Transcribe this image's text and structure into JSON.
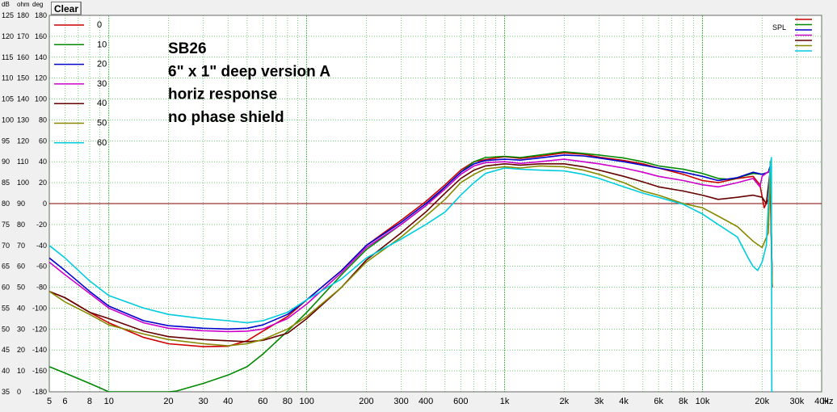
{
  "toolbar": {
    "clear_label": "Clear"
  },
  "chart_data": {
    "type": "line",
    "x_scale": "log",
    "xlim": [
      5,
      40000
    ],
    "ylim": [
      35,
      125
    ],
    "unit_headers": [
      "dB",
      "ohm",
      "deg"
    ],
    "y_ticks_db": [
      125,
      120,
      115,
      110,
      105,
      100,
      95,
      90,
      85,
      80,
      75,
      70,
      65,
      60,
      55,
      50,
      45,
      40,
      35
    ],
    "y_ticks_ohm": [
      180,
      170,
      160,
      150,
      140,
      130,
      120,
      110,
      100,
      90,
      80,
      70,
      60,
      50,
      40,
      30,
      20,
      10,
      0
    ],
    "y_ticks_deg": [
      180,
      160,
      140,
      120,
      100,
      80,
      60,
      40,
      20,
      0,
      -20,
      -40,
      -60,
      -80,
      -100,
      -120,
      -140,
      -160,
      -180
    ],
    "x_ticks": [
      {
        "v": 5,
        "label": "5"
      },
      {
        "v": 6,
        "label": "6"
      },
      {
        "v": 8,
        "label": "8"
      },
      {
        "v": 10,
        "label": "10"
      },
      {
        "v": 20,
        "label": "20"
      },
      {
        "v": 30,
        "label": "30"
      },
      {
        "v": 40,
        "label": "40"
      },
      {
        "v": 60,
        "label": "60"
      },
      {
        "v": 80,
        "label": "80"
      },
      {
        "v": 100,
        "label": "100"
      },
      {
        "v": 200,
        "label": "200"
      },
      {
        "v": 300,
        "label": "300"
      },
      {
        "v": 400,
        "label": "400"
      },
      {
        "v": 600,
        "label": "600"
      },
      {
        "v": 1000,
        "label": "1k"
      },
      {
        "v": 2000,
        "label": "2k"
      },
      {
        "v": 3000,
        "label": "3k"
      },
      {
        "v": 4000,
        "label": "4k"
      },
      {
        "v": 6000,
        "label": "6k"
      },
      {
        "v": 8000,
        "label": "8k"
      },
      {
        "v": 10000,
        "label": "10k"
      },
      {
        "v": 20000,
        "label": "20k"
      },
      {
        "v": 30000,
        "label": "30k"
      },
      {
        "v": 40000,
        "label": "40k"
      }
    ],
    "x_unit": "Hz",
    "reference_line_db": 80,
    "reference_color": "#800000",
    "grid": true,
    "annotation": [
      "SB26",
      "6\" x 1\" deep version A",
      "horiz response",
      "no phase shield"
    ],
    "legend_placement": "top-left",
    "spl_label": "SPL",
    "series": [
      {
        "name": "0",
        "color": "#cc0000",
        "points": [
          [
            5,
            59
          ],
          [
            6,
            57.5
          ],
          [
            8,
            54
          ],
          [
            10,
            51.5
          ],
          [
            15,
            48
          ],
          [
            20,
            46.5
          ],
          [
            30,
            45.8
          ],
          [
            40,
            45.9
          ],
          [
            50,
            47.2
          ],
          [
            60,
            49.5
          ],
          [
            80,
            53
          ],
          [
            100,
            57
          ],
          [
            150,
            64
          ],
          [
            200,
            70
          ],
          [
            300,
            76
          ],
          [
            400,
            80.5
          ],
          [
            500,
            84.5
          ],
          [
            600,
            88
          ],
          [
            700,
            90
          ],
          [
            800,
            90.5
          ],
          [
            1000,
            91.2
          ],
          [
            1200,
            90.8
          ],
          [
            1500,
            91.3
          ],
          [
            2000,
            92.1
          ],
          [
            2500,
            91.8
          ],
          [
            3000,
            91.1
          ],
          [
            4000,
            90.3
          ],
          [
            5000,
            89.5
          ],
          [
            6000,
            88.5
          ],
          [
            8000,
            87
          ],
          [
            10000,
            85.5
          ],
          [
            12000,
            85
          ],
          [
            15000,
            86
          ],
          [
            18000,
            86.5
          ],
          [
            19500,
            84.5
          ],
          [
            20500,
            79
          ],
          [
            21500,
            81
          ],
          [
            22000,
            84
          ],
          [
            22500,
            60
          ]
        ]
      },
      {
        "name": "10",
        "color": "#008800",
        "points": [
          [
            5,
            41
          ],
          [
            6,
            39.5
          ],
          [
            8,
            37
          ],
          [
            10,
            35
          ],
          [
            20,
            35
          ],
          [
            22,
            35.2
          ],
          [
            30,
            37
          ],
          [
            40,
            39
          ],
          [
            50,
            41
          ],
          [
            60,
            44
          ],
          [
            80,
            49.5
          ],
          [
            100,
            54
          ],
          [
            150,
            63
          ],
          [
            200,
            69
          ],
          [
            300,
            75
          ],
          [
            400,
            79.5
          ],
          [
            500,
            84
          ],
          [
            600,
            87.5
          ],
          [
            700,
            90
          ],
          [
            800,
            91
          ],
          [
            1000,
            91.3
          ],
          [
            1200,
            91
          ],
          [
            1500,
            91.6
          ],
          [
            2000,
            92.4
          ],
          [
            2500,
            92
          ],
          [
            3000,
            91.6
          ],
          [
            4000,
            90.9
          ],
          [
            5000,
            90
          ],
          [
            6000,
            89
          ],
          [
            8000,
            88.2
          ],
          [
            10000,
            87.2
          ],
          [
            12000,
            86
          ],
          [
            14000,
            85.8
          ],
          [
            18000,
            87.2
          ],
          [
            20000,
            87
          ],
          [
            21500,
            87.5
          ],
          [
            22000,
            89
          ],
          [
            22500,
            60
          ]
        ]
      },
      {
        "name": "20",
        "color": "#0000cc",
        "points": [
          [
            5,
            67
          ],
          [
            6,
            64
          ],
          [
            8,
            59
          ],
          [
            10,
            55.5
          ],
          [
            15,
            52
          ],
          [
            20,
            50.8
          ],
          [
            30,
            50.2
          ],
          [
            40,
            50
          ],
          [
            50,
            50.2
          ],
          [
            60,
            51
          ],
          [
            80,
            53.5
          ],
          [
            100,
            57
          ],
          [
            150,
            64
          ],
          [
            200,
            70
          ],
          [
            300,
            75.5
          ],
          [
            400,
            80
          ],
          [
            500,
            84
          ],
          [
            600,
            87.5
          ],
          [
            700,
            89.5
          ],
          [
            800,
            90.3
          ],
          [
            1000,
            90.6
          ],
          [
            1200,
            90.4
          ],
          [
            1500,
            90.9
          ],
          [
            2000,
            91.6
          ],
          [
            2500,
            91.4
          ],
          [
            3000,
            90.9
          ],
          [
            4000,
            90
          ],
          [
            5000,
            89.2
          ],
          [
            6000,
            88.5
          ],
          [
            8000,
            87.5
          ],
          [
            10000,
            86.5
          ],
          [
            12000,
            85.5
          ],
          [
            15000,
            86.2
          ],
          [
            18000,
            87.5
          ],
          [
            20000,
            87
          ],
          [
            21500,
            87.5
          ],
          [
            22000,
            89
          ],
          [
            22500,
            60
          ]
        ]
      },
      {
        "name": "30",
        "color": "#cc00cc",
        "points": [
          [
            5,
            66
          ],
          [
            6,
            63
          ],
          [
            8,
            58.5
          ],
          [
            10,
            55
          ],
          [
            15,
            51.5
          ],
          [
            20,
            50.2
          ],
          [
            30,
            49.6
          ],
          [
            40,
            49.4
          ],
          [
            50,
            49.5
          ],
          [
            60,
            50
          ],
          [
            80,
            52.5
          ],
          [
            100,
            56
          ],
          [
            150,
            63.5
          ],
          [
            200,
            69.5
          ],
          [
            300,
            75
          ],
          [
            400,
            79.5
          ],
          [
            500,
            83.5
          ],
          [
            600,
            87
          ],
          [
            700,
            89
          ],
          [
            800,
            89.8
          ],
          [
            1000,
            90
          ],
          [
            1200,
            89.6
          ],
          [
            1500,
            90
          ],
          [
            2000,
            90.6
          ],
          [
            2500,
            90
          ],
          [
            3000,
            89.5
          ],
          [
            4000,
            88.5
          ],
          [
            5000,
            87.5
          ],
          [
            6000,
            86.5
          ],
          [
            8000,
            85.5
          ],
          [
            10000,
            84.5
          ],
          [
            12000,
            84
          ],
          [
            15000,
            85
          ],
          [
            18000,
            86
          ],
          [
            19500,
            84
          ],
          [
            20000,
            86.5
          ],
          [
            22000,
            88
          ],
          [
            22500,
            60
          ]
        ]
      },
      {
        "name": "40",
        "color": "#660000",
        "points": [
          [
            5,
            59
          ],
          [
            6,
            57.5
          ],
          [
            8,
            54
          ],
          [
            10,
            52.5
          ],
          [
            15,
            49.5
          ],
          [
            20,
            48.2
          ],
          [
            30,
            47.5
          ],
          [
            40,
            47.2
          ],
          [
            50,
            47
          ],
          [
            60,
            47.3
          ],
          [
            80,
            49
          ],
          [
            100,
            52.5
          ],
          [
            150,
            60
          ],
          [
            200,
            66.5
          ],
          [
            300,
            73
          ],
          [
            400,
            78
          ],
          [
            500,
            82.5
          ],
          [
            600,
            86
          ],
          [
            700,
            88
          ],
          [
            800,
            89
          ],
          [
            1000,
            89.5
          ],
          [
            1200,
            89.2
          ],
          [
            1500,
            89.5
          ],
          [
            2000,
            89.5
          ],
          [
            2500,
            88.8
          ],
          [
            3000,
            88
          ],
          [
            4000,
            86.5
          ],
          [
            5000,
            85.2
          ],
          [
            6000,
            84
          ],
          [
            8000,
            83
          ],
          [
            10000,
            82
          ],
          [
            12000,
            81
          ],
          [
            15000,
            81.5
          ],
          [
            18000,
            82
          ],
          [
            20000,
            81.5
          ],
          [
            21000,
            80
          ],
          [
            22000,
            88
          ],
          [
            22500,
            60
          ]
        ]
      },
      {
        "name": "50",
        "color": "#888800",
        "points": [
          [
            5,
            59
          ],
          [
            6,
            56.5
          ],
          [
            8,
            53.5
          ],
          [
            10,
            51
          ],
          [
            15,
            48.8
          ],
          [
            20,
            47.5
          ],
          [
            30,
            46.5
          ],
          [
            40,
            46
          ],
          [
            50,
            46.5
          ],
          [
            60,
            47.5
          ],
          [
            80,
            50
          ],
          [
            100,
            53
          ],
          [
            150,
            60
          ],
          [
            200,
            66
          ],
          [
            300,
            72
          ],
          [
            400,
            77
          ],
          [
            500,
            81
          ],
          [
            600,
            85
          ],
          [
            700,
            87
          ],
          [
            800,
            88.3
          ],
          [
            1000,
            88.8
          ],
          [
            1200,
            88.5
          ],
          [
            1500,
            89
          ],
          [
            2000,
            88.8
          ],
          [
            2500,
            88
          ],
          [
            3000,
            87
          ],
          [
            4000,
            85
          ],
          [
            5000,
            83
          ],
          [
            6000,
            82
          ],
          [
            8000,
            80
          ],
          [
            10000,
            79
          ],
          [
            12000,
            77
          ],
          [
            15000,
            74.5
          ],
          [
            18000,
            71
          ],
          [
            20000,
            69.5
          ],
          [
            21500,
            73
          ],
          [
            22000,
            90
          ],
          [
            22500,
            60
          ]
        ]
      },
      {
        "name": "60",
        "color": "#00ccdd",
        "points": [
          [
            5,
            70
          ],
          [
            6,
            67
          ],
          [
            8,
            61.5
          ],
          [
            10,
            58
          ],
          [
            15,
            55
          ],
          [
            20,
            53.5
          ],
          [
            30,
            52.5
          ],
          [
            40,
            52
          ],
          [
            50,
            51.5
          ],
          [
            60,
            52
          ],
          [
            80,
            54
          ],
          [
            100,
            57
          ],
          [
            150,
            62
          ],
          [
            200,
            67
          ],
          [
            300,
            71.5
          ],
          [
            400,
            75
          ],
          [
            500,
            78
          ],
          [
            600,
            82
          ],
          [
            700,
            85
          ],
          [
            800,
            87.2
          ],
          [
            1000,
            88.5
          ],
          [
            1200,
            88.2
          ],
          [
            1500,
            88
          ],
          [
            2000,
            87.8
          ],
          [
            2500,
            87
          ],
          [
            3000,
            86
          ],
          [
            4000,
            84
          ],
          [
            5000,
            82.5
          ],
          [
            6000,
            81.5
          ],
          [
            8000,
            79.8
          ],
          [
            10000,
            77.5
          ],
          [
            12000,
            75
          ],
          [
            15000,
            72
          ],
          [
            17000,
            67
          ],
          [
            18000,
            65
          ],
          [
            19000,
            64
          ],
          [
            20000,
            66
          ],
          [
            21000,
            70
          ],
          [
            22000,
            89
          ],
          [
            22300,
            91
          ],
          [
            22400,
            35
          ],
          [
            22800,
            35
          ]
        ]
      }
    ]
  }
}
